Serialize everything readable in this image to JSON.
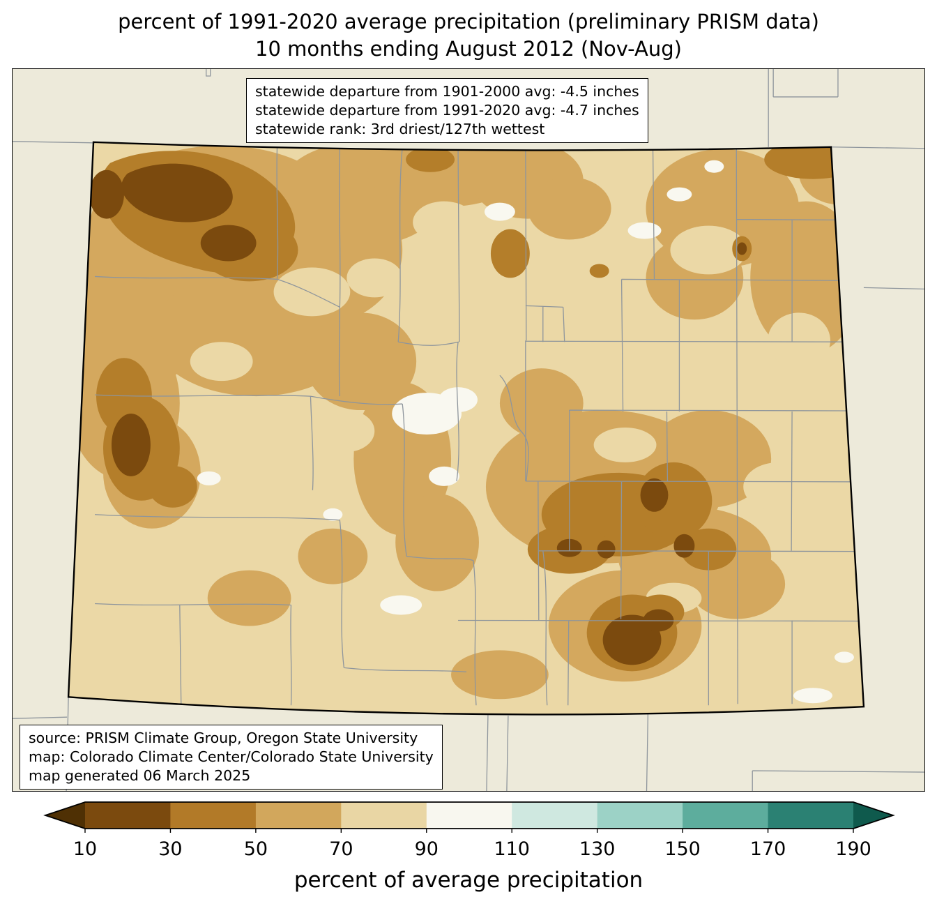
{
  "title": {
    "line1": "percent of 1991-2020 average precipitation (preliminary PRISM data)",
    "line2": "10 months ending August 2012 (Nov-Aug)"
  },
  "stats_box": {
    "line1": "statewide departure from 1901-2000 avg: -4.5 inches",
    "line2": "statewide departure from 1991-2020 avg: -4.7 inches",
    "line3": "statewide rank: 3rd driest/127th wettest"
  },
  "source_box": {
    "line1": "source: PRISM Climate Group, Oregon State University",
    "line2": "map: Colorado Climate Center/Colorado State University",
    "line3": "map generated 06 March 2025"
  },
  "colorbar": {
    "label": "percent of average precipitation",
    "ticks": [
      "10",
      "30",
      "50",
      "70",
      "90",
      "110",
      "130",
      "150",
      "170",
      "190"
    ],
    "segment_colors": [
      "#7b4a0e",
      "#b27a28",
      "#d2a75c",
      "#e9d6a4",
      "#f8f7ef",
      "#cfe8e0",
      "#9cd2c6",
      "#5dad9d",
      "#2b8173"
    ],
    "left_arrow_color": "#4f3004",
    "right_arrow_color": "#0f5a4d"
  },
  "map": {
    "region": "Colorado",
    "surround_color": "#edeada",
    "base_fill_70_90": "#ebd8a6",
    "fill_50_70": "#d4a85e",
    "fill_30_50": "#b47e2a",
    "fill_10_30": "#7b4a0e",
    "fill_90_110": "#f9f8f0",
    "county_line_color": "#8e959c",
    "state_border_color": "#000000"
  }
}
